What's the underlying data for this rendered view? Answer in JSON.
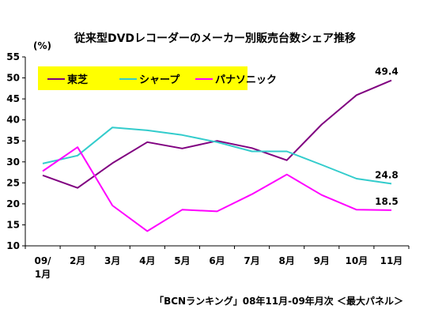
{
  "chart_data": {
    "type": "line",
    "title": "従来型DVDレコーダーのメーカー別販売台数シェア推移",
    "unit_label": "(%)",
    "categories": [
      [
        "09/",
        "1月"
      ],
      [
        "2月"
      ],
      [
        "3月"
      ],
      [
        "4月"
      ],
      [
        "5月"
      ],
      [
        "6月"
      ],
      [
        "7月"
      ],
      [
        "8月"
      ],
      [
        "9月"
      ],
      [
        "10月"
      ],
      [
        "11月"
      ]
    ],
    "ylim": [
      10,
      55
    ],
    "yticks": [
      10,
      15,
      20,
      25,
      30,
      35,
      40,
      45,
      50,
      55
    ],
    "series": [
      {
        "name": "東芝",
        "color": "#800080",
        "values": [
          26.8,
          23.8,
          29.7,
          34.7,
          33.2,
          35.0,
          33.3,
          30.4,
          38.9,
          45.9,
          49.4
        ],
        "end_label": "49.4"
      },
      {
        "name": "シャープ",
        "color": "#33CCCC",
        "values": [
          29.6,
          31.5,
          38.2,
          37.5,
          36.4,
          34.7,
          32.5,
          32.5,
          29.3,
          26.0,
          24.8
        ],
        "end_label": "24.8"
      },
      {
        "name": "パナソニック",
        "color": "#FF00FF",
        "values": [
          27.8,
          33.5,
          19.6,
          13.5,
          18.6,
          18.2,
          22.3,
          27.0,
          22.1,
          18.6,
          18.5
        ],
        "end_label": "18.5"
      }
    ],
    "legend_position": "top-left",
    "legend_background": "#FFFF00",
    "grid": false,
    "source": "「BCNランキング」08年11月-09年月次 ＜最大パネル＞"
  }
}
